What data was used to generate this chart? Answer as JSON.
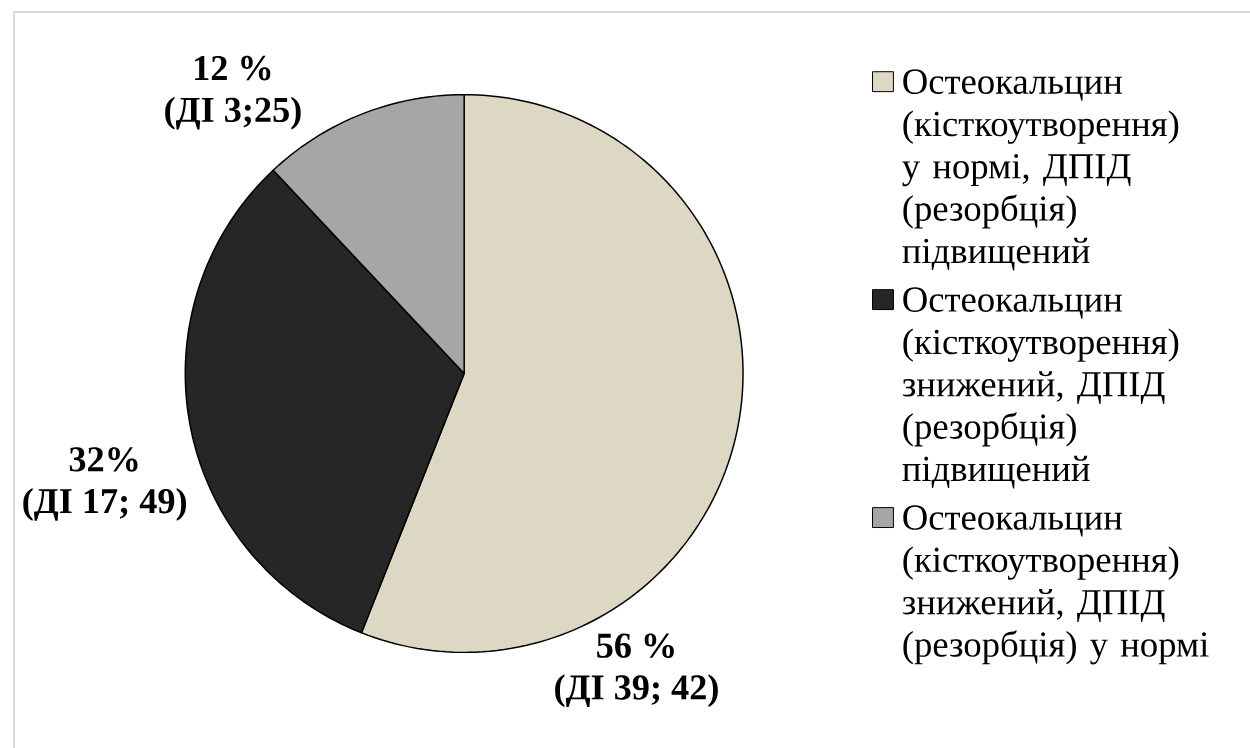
{
  "chart_data": {
    "type": "pie",
    "categories": [
      "Остеокальцин (кісткоутворення) у нормі, ДПІД (резорбція) підвищений",
      "Остеокальцин (кісткоутворення) знижений, ДПІД (резорбція) підвищений",
      "Остеокальцин (кісткоутворення) знижений, ДПІД (резорбція) у нормі"
    ],
    "values": [
      56,
      32,
      12
    ],
    "colors": [
      "#ddd8c4",
      "#262626",
      "#a6a6a6"
    ],
    "value_labels": [
      "56 %",
      "32%",
      "12 %"
    ],
    "annotations": [
      "(ДІ 39; 42)",
      "(ДІ 17; 49)",
      "(ДІ 3;25)"
    ],
    "legend": "right"
  }
}
